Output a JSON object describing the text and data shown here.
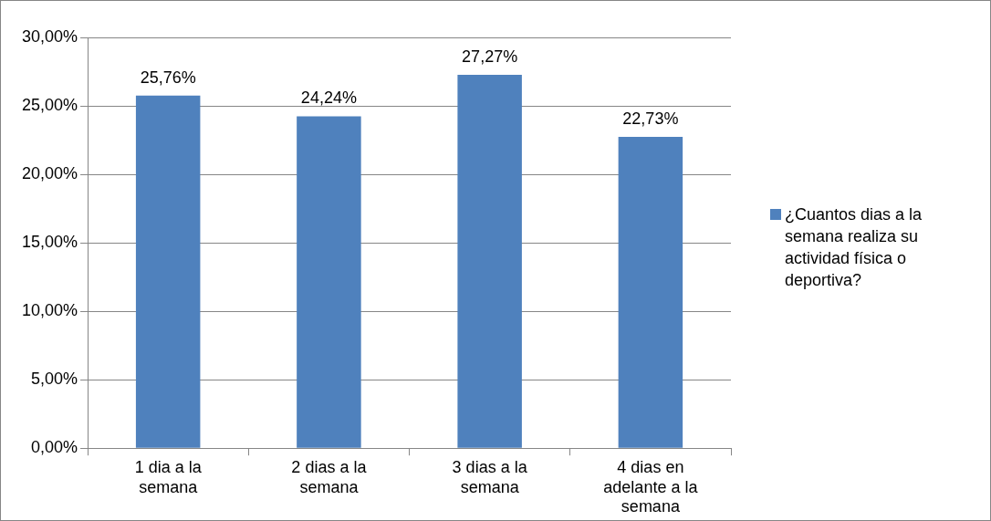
{
  "chart_data": {
    "type": "bar",
    "categories": [
      "1 dia a la semana",
      "2 dias a la semana",
      "3 dias a la semana",
      "4 dias en adelante a la semana"
    ],
    "series": [
      {
        "name": "¿Cuantos dias a la semana realiza su actividad física o deportiva?",
        "color": "#4f81bd",
        "values": [
          25.76,
          24.24,
          27.27,
          22.73
        ],
        "value_labels": [
          "25,76%",
          "24,24%",
          "27,27%",
          "22,73%"
        ]
      }
    ],
    "ylim": [
      0,
      30
    ],
    "yticks": [
      {
        "value": 0,
        "label": "0,00%"
      },
      {
        "value": 5,
        "label": "5,00%"
      },
      {
        "value": 10,
        "label": "10,00%"
      },
      {
        "value": 15,
        "label": "15,00%"
      },
      {
        "value": 20,
        "label": "20,00%"
      },
      {
        "value": 25,
        "label": "25,00%"
      },
      {
        "value": 30,
        "label": "30,00%"
      }
    ],
    "grid": "y",
    "legend": "right"
  }
}
